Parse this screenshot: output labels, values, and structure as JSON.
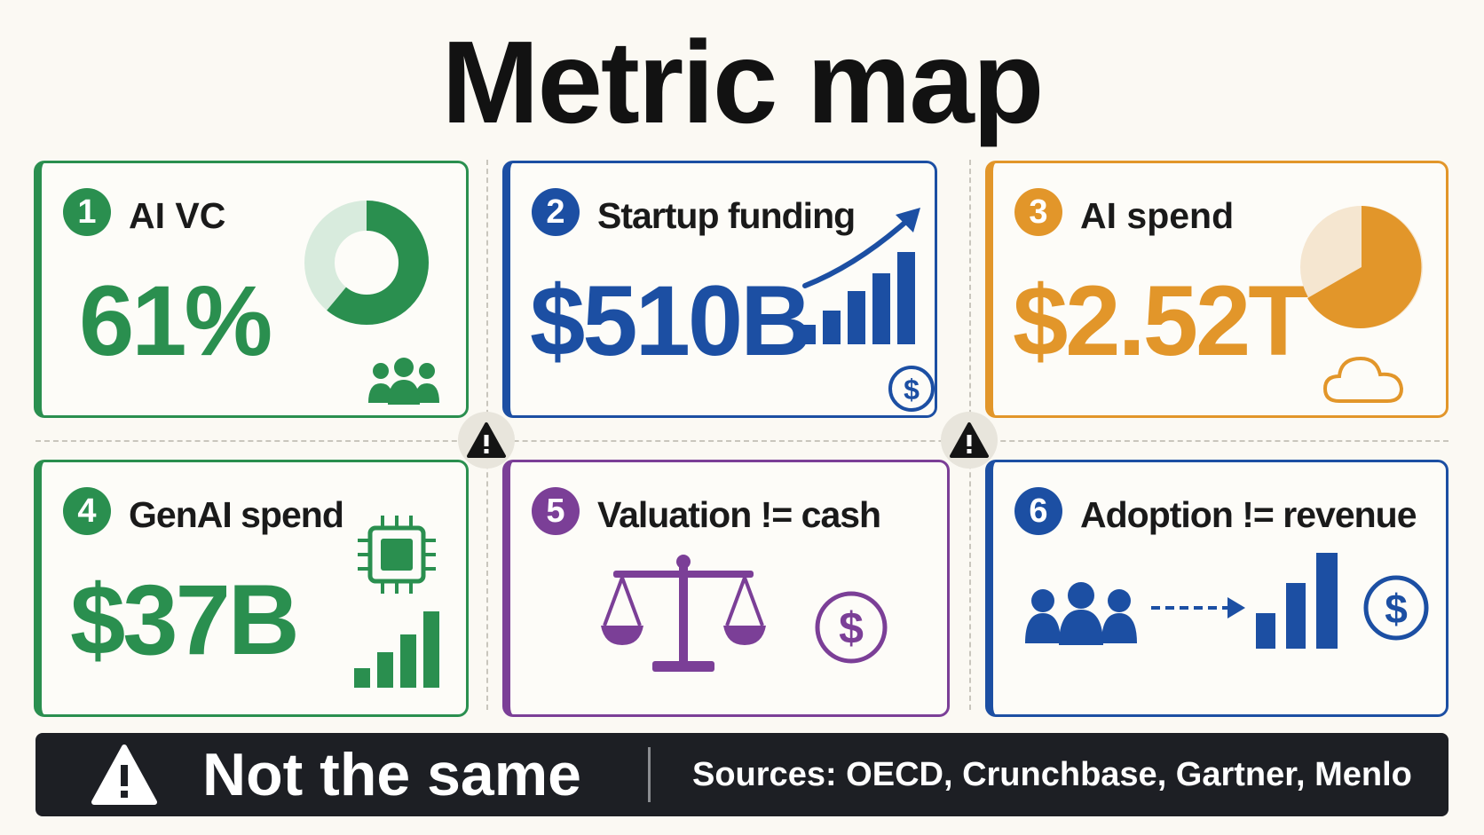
{
  "title": "Metric map",
  "colors": {
    "green": "#2a8f4f",
    "blue": "#1c4fa3",
    "orange": "#e2962a",
    "purple": "#7b3f97",
    "footer_bg": "#1d1f24",
    "background": "#fbf9f3"
  },
  "cards": [
    {
      "number": "1",
      "label": "AI VC",
      "value": "61%",
      "color": "green",
      "icons": [
        "donut-chart-icon",
        "people-icon"
      ],
      "donut_fraction": 0.61
    },
    {
      "number": "2",
      "label": "Startup funding",
      "value": "$510B",
      "color": "blue",
      "icons": [
        "growth-chart-icon",
        "dollar-coin-icon"
      ]
    },
    {
      "number": "3",
      "label": "AI spend",
      "value": "$2.52T",
      "color": "orange",
      "icons": [
        "pie-chart-icon",
        "cloud-icon"
      ]
    },
    {
      "number": "4",
      "label": "GenAI spend",
      "value": "$37B",
      "color": "green",
      "icons": [
        "chip-icon",
        "bar-chart-icon"
      ]
    },
    {
      "number": "5",
      "label": "Valuation != cash",
      "color": "purple",
      "icons": [
        "scale-icon",
        "dollar-coin-icon"
      ]
    },
    {
      "number": "6",
      "label": "Adoption != revenue",
      "color": "blue",
      "icons": [
        "people-icon",
        "dashed-arrow-icon",
        "bar-chart-icon",
        "dollar-coin-icon"
      ]
    }
  ],
  "warning_markers": [
    "warning-icon",
    "warning-icon"
  ],
  "footer": {
    "icon": "warning-icon",
    "main": "Not the same",
    "sources": "Sources: OECD, Crunchbase, Gartner, Menlo"
  }
}
